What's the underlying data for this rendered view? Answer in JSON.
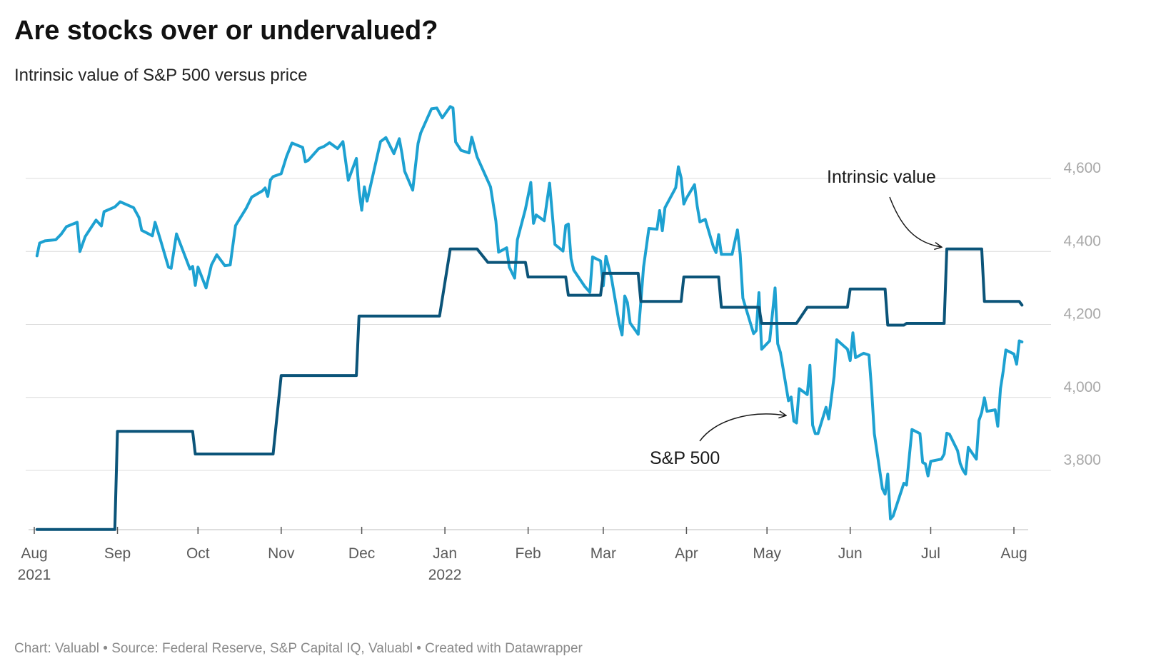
{
  "title": "Are stocks over or undervalued?",
  "subtitle": "Intrinsic value of S&P 500 versus price",
  "footer": {
    "credit": "Chart: Valuabl",
    "source": "Source: Federal Reserve, S&P Capital IQ, Valuabl",
    "tool": "Created with Datawrapper",
    "separator": " • "
  },
  "colors": {
    "sp500": "#1da1d1",
    "intrinsic": "#0b5479",
    "grid": "#dcdcdc",
    "ytick": "#a8a8a8",
    "xtick": "#5a5a5a"
  },
  "chart_data": {
    "type": "line",
    "title": "Are stocks over or undervalued?",
    "subtitle": "Intrinsic value of S&P 500 versus price",
    "xlabel": "",
    "ylabel": "",
    "xlim": [
      "2021-08-01",
      "2022-08-14"
    ],
    "ylim": [
      3630,
      4770
    ],
    "y_ticks": [
      3800,
      4000,
      4200,
      4400,
      4600
    ],
    "y_tick_labels": [
      "3,800",
      "4,000",
      "4,200",
      "4,400",
      "4,600"
    ],
    "x_ticks": [
      {
        "date": "2021-08-01",
        "label": "Aug",
        "sublabel": "2021"
      },
      {
        "date": "2021-09-01",
        "label": "Sep",
        "sublabel": ""
      },
      {
        "date": "2021-10-01",
        "label": "Oct",
        "sublabel": ""
      },
      {
        "date": "2021-11-01",
        "label": "Nov",
        "sublabel": ""
      },
      {
        "date": "2021-12-01",
        "label": "Dec",
        "sublabel": ""
      },
      {
        "date": "2022-01-01",
        "label": "Jan",
        "sublabel": "2022"
      },
      {
        "date": "2022-02-01",
        "label": "Feb",
        "sublabel": ""
      },
      {
        "date": "2022-03-01",
        "label": "Mar",
        "sublabel": ""
      },
      {
        "date": "2022-04-01",
        "label": "Apr",
        "sublabel": ""
      },
      {
        "date": "2022-05-01",
        "label": "May",
        "sublabel": ""
      },
      {
        "date": "2022-06-01",
        "label": "Jun",
        "sublabel": ""
      },
      {
        "date": "2022-07-01",
        "label": "Jul",
        "sublabel": ""
      },
      {
        "date": "2022-08-01",
        "label": "Aug",
        "sublabel": ""
      }
    ],
    "grid": true,
    "legend": "none (direct labels)",
    "annotations": [
      {
        "text": "Intrinsic value",
        "series": "Intrinsic value",
        "target": [
          "2022-07-06",
          4400
        ],
        "label_at": [
          "2022-07-01",
          4580
        ]
      },
      {
        "text": "S&P 500",
        "series": "S&P 500",
        "target": [
          "2022-05-09",
          3940
        ],
        "label_at": [
          "2022-04-15",
          3850
        ]
      }
    ],
    "series": [
      {
        "name": "S&P 500",
        "color": "#1da1d1",
        "points": [
          [
            "2021-08-02",
            4388
          ],
          [
            "2021-08-03",
            4423
          ],
          [
            "2021-08-05",
            4429
          ],
          [
            "2021-08-09",
            4432
          ],
          [
            "2021-08-11",
            4447
          ],
          [
            "2021-08-13",
            4468
          ],
          [
            "2021-08-17",
            4480
          ],
          [
            "2021-08-18",
            4400
          ],
          [
            "2021-08-20",
            4441
          ],
          [
            "2021-08-24",
            4486
          ],
          [
            "2021-08-26",
            4470
          ],
          [
            "2021-08-27",
            4509
          ],
          [
            "2021-08-31",
            4522
          ],
          [
            "2021-09-02",
            4536
          ],
          [
            "2021-09-07",
            4520
          ],
          [
            "2021-09-09",
            4493
          ],
          [
            "2021-09-10",
            4458
          ],
          [
            "2021-09-14",
            4443
          ],
          [
            "2021-09-15",
            4480
          ],
          [
            "2021-09-17",
            4432
          ],
          [
            "2021-09-20",
            4357
          ],
          [
            "2021-09-21",
            4354
          ],
          [
            "2021-09-23",
            4448
          ],
          [
            "2021-09-28",
            4352
          ],
          [
            "2021-09-29",
            4359
          ],
          [
            "2021-09-30",
            4307
          ],
          [
            "2021-10-01",
            4357
          ],
          [
            "2021-10-04",
            4300
          ],
          [
            "2021-10-06",
            4363
          ],
          [
            "2021-10-08",
            4391
          ],
          [
            "2021-10-11",
            4361
          ],
          [
            "2021-10-13",
            4363
          ],
          [
            "2021-10-15",
            4471
          ],
          [
            "2021-10-19",
            4519
          ],
          [
            "2021-10-21",
            4549
          ],
          [
            "2021-10-25",
            4566
          ],
          [
            "2021-10-26",
            4574
          ],
          [
            "2021-10-27",
            4551
          ],
          [
            "2021-10-28",
            4596
          ],
          [
            "2021-10-29",
            4605
          ],
          [
            "2021-11-01",
            4613
          ],
          [
            "2021-11-03",
            4660
          ],
          [
            "2021-11-05",
            4697
          ],
          [
            "2021-11-09",
            4685
          ],
          [
            "2021-11-10",
            4646
          ],
          [
            "2021-11-11",
            4649
          ],
          [
            "2021-11-15",
            4682
          ],
          [
            "2021-11-17",
            4688
          ],
          [
            "2021-11-19",
            4698
          ],
          [
            "2021-11-22",
            4682
          ],
          [
            "2021-11-24",
            4701
          ],
          [
            "2021-11-26",
            4595
          ],
          [
            "2021-11-29",
            4655
          ],
          [
            "2021-11-30",
            4567
          ],
          [
            "2021-12-01",
            4513
          ],
          [
            "2021-12-02",
            4577
          ],
          [
            "2021-12-03",
            4538
          ],
          [
            "2021-12-08",
            4701
          ],
          [
            "2021-12-10",
            4712
          ],
          [
            "2021-12-13",
            4668
          ],
          [
            "2021-12-15",
            4709
          ],
          [
            "2021-12-16",
            4668
          ],
          [
            "2021-12-17",
            4620
          ],
          [
            "2021-12-20",
            4568
          ],
          [
            "2021-12-22",
            4696
          ],
          [
            "2021-12-23",
            4725
          ],
          [
            "2021-12-27",
            4791
          ],
          [
            "2021-12-29",
            4793
          ],
          [
            "2021-12-31",
            4766
          ],
          [
            "2022-01-03",
            4797
          ],
          [
            "2022-01-04",
            4793
          ],
          [
            "2022-01-05",
            4700
          ],
          [
            "2022-01-07",
            4677
          ],
          [
            "2022-01-10",
            4670
          ],
          [
            "2022-01-11",
            4713
          ],
          [
            "2022-01-13",
            4659
          ],
          [
            "2022-01-18",
            4577
          ],
          [
            "2022-01-20",
            4483
          ],
          [
            "2022-01-21",
            4398
          ],
          [
            "2022-01-24",
            4410
          ],
          [
            "2022-01-25",
            4357
          ],
          [
            "2022-01-27",
            4327
          ],
          [
            "2022-01-28",
            4432
          ],
          [
            "2022-01-31",
            4516
          ],
          [
            "2022-02-02",
            4589
          ],
          [
            "2022-02-03",
            4477
          ],
          [
            "2022-02-04",
            4500
          ],
          [
            "2022-02-07",
            4484
          ],
          [
            "2022-02-09",
            4587
          ],
          [
            "2022-02-11",
            4419
          ],
          [
            "2022-02-14",
            4401
          ],
          [
            "2022-02-15",
            4471
          ],
          [
            "2022-02-16",
            4475
          ],
          [
            "2022-02-17",
            4380
          ],
          [
            "2022-02-18",
            4349
          ],
          [
            "2022-02-22",
            4305
          ],
          [
            "2022-02-24",
            4288
          ],
          [
            "2022-02-25",
            4385
          ],
          [
            "2022-02-28",
            4374
          ],
          [
            "2022-03-01",
            4306
          ],
          [
            "2022-03-02",
            4387
          ],
          [
            "2022-03-04",
            4329
          ],
          [
            "2022-03-07",
            4201
          ],
          [
            "2022-03-08",
            4171
          ],
          [
            "2022-03-09",
            4278
          ],
          [
            "2022-03-10",
            4260
          ],
          [
            "2022-03-11",
            4204
          ],
          [
            "2022-03-14",
            4173
          ],
          [
            "2022-03-15",
            4262
          ],
          [
            "2022-03-16",
            4357
          ],
          [
            "2022-03-18",
            4463
          ],
          [
            "2022-03-21",
            4461
          ],
          [
            "2022-03-22",
            4512
          ],
          [
            "2022-03-23",
            4457
          ],
          [
            "2022-03-24",
            4520
          ],
          [
            "2022-03-28",
            4575
          ],
          [
            "2022-03-29",
            4632
          ],
          [
            "2022-03-30",
            4602
          ],
          [
            "2022-03-31",
            4530
          ],
          [
            "2022-04-01",
            4546
          ],
          [
            "2022-04-04",
            4583
          ],
          [
            "2022-04-05",
            4525
          ],
          [
            "2022-04-06",
            4481
          ],
          [
            "2022-04-08",
            4488
          ],
          [
            "2022-04-11",
            4413
          ],
          [
            "2022-04-12",
            4397
          ],
          [
            "2022-04-13",
            4446
          ],
          [
            "2022-04-14",
            4392
          ],
          [
            "2022-04-18",
            4392
          ],
          [
            "2022-04-20",
            4459
          ],
          [
            "2022-04-21",
            4393
          ],
          [
            "2022-04-22",
            4272
          ],
          [
            "2022-04-26",
            4175
          ],
          [
            "2022-04-27",
            4183
          ],
          [
            "2022-04-28",
            4287
          ],
          [
            "2022-04-29",
            4132
          ],
          [
            "2022-05-02",
            4155
          ],
          [
            "2022-05-04",
            4300
          ],
          [
            "2022-05-05",
            4147
          ],
          [
            "2022-05-06",
            4123
          ],
          [
            "2022-05-09",
            3991
          ],
          [
            "2022-05-10",
            4001
          ],
          [
            "2022-05-11",
            3935
          ],
          [
            "2022-05-12",
            3930
          ],
          [
            "2022-05-13",
            4024
          ],
          [
            "2022-05-16",
            4008
          ],
          [
            "2022-05-17",
            4088
          ],
          [
            "2022-05-18",
            3924
          ],
          [
            "2022-05-19",
            3901
          ],
          [
            "2022-05-20",
            3901
          ],
          [
            "2022-05-23",
            3973
          ],
          [
            "2022-05-24",
            3941
          ],
          [
            "2022-05-26",
            4058
          ],
          [
            "2022-05-27",
            4158
          ],
          [
            "2022-05-31",
            4132
          ],
          [
            "2022-06-01",
            4101
          ],
          [
            "2022-06-02",
            4177
          ],
          [
            "2022-06-03",
            4109
          ],
          [
            "2022-06-06",
            4121
          ],
          [
            "2022-06-08",
            4116
          ],
          [
            "2022-06-09",
            4018
          ],
          [
            "2022-06-10",
            3901
          ],
          [
            "2022-06-13",
            3750
          ],
          [
            "2022-06-14",
            3735
          ],
          [
            "2022-06-15",
            3790
          ],
          [
            "2022-06-16",
            3667
          ],
          [
            "2022-06-17",
            3675
          ],
          [
            "2022-06-21",
            3765
          ],
          [
            "2022-06-22",
            3760
          ],
          [
            "2022-06-24",
            3912
          ],
          [
            "2022-06-27",
            3901
          ],
          [
            "2022-06-28",
            3822
          ],
          [
            "2022-06-29",
            3818
          ],
          [
            "2022-06-30",
            3785
          ],
          [
            "2022-07-01",
            3825
          ],
          [
            "2022-07-05",
            3831
          ],
          [
            "2022-07-06",
            3845
          ],
          [
            "2022-07-07",
            3902
          ],
          [
            "2022-07-08",
            3899
          ],
          [
            "2022-07-11",
            3854
          ],
          [
            "2022-07-12",
            3819
          ],
          [
            "2022-07-13",
            3801
          ],
          [
            "2022-07-14",
            3790
          ],
          [
            "2022-07-15",
            3863
          ],
          [
            "2022-07-18",
            3831
          ],
          [
            "2022-07-19",
            3937
          ],
          [
            "2022-07-20",
            3959
          ],
          [
            "2022-07-21",
            3999
          ],
          [
            "2022-07-22",
            3962
          ],
          [
            "2022-07-25",
            3966
          ],
          [
            "2022-07-26",
            3921
          ],
          [
            "2022-07-27",
            4024
          ],
          [
            "2022-07-28",
            4072
          ],
          [
            "2022-07-29",
            4130
          ],
          [
            "2022-08-01",
            4119
          ],
          [
            "2022-08-02",
            4091
          ],
          [
            "2022-08-03",
            4155
          ],
          [
            "2022-08-04",
            4152
          ]
        ]
      },
      {
        "name": "Intrinsic value",
        "color": "#0b5479",
        "points": [
          [
            "2021-08-02",
            3638
          ],
          [
            "2021-08-31",
            3638
          ],
          [
            "2021-09-01",
            3907
          ],
          [
            "2021-09-29",
            3907
          ],
          [
            "2021-09-30",
            3845
          ],
          [
            "2021-10-29",
            3845
          ],
          [
            "2021-11-01",
            4060
          ],
          [
            "2021-11-29",
            4060
          ],
          [
            "2021-11-30",
            4223
          ],
          [
            "2021-12-30",
            4223
          ],
          [
            "2022-01-03",
            4407
          ],
          [
            "2022-01-13",
            4407
          ],
          [
            "2022-01-17",
            4370
          ],
          [
            "2022-01-31",
            4370
          ],
          [
            "2022-02-01",
            4330
          ],
          [
            "2022-02-15",
            4330
          ],
          [
            "2022-02-16",
            4280
          ],
          [
            "2022-02-28",
            4280
          ],
          [
            "2022-03-01",
            4340
          ],
          [
            "2022-03-14",
            4340
          ],
          [
            "2022-03-15",
            4263
          ],
          [
            "2022-03-30",
            4263
          ],
          [
            "2022-03-31",
            4330
          ],
          [
            "2022-04-13",
            4330
          ],
          [
            "2022-04-14",
            4247
          ],
          [
            "2022-04-28",
            4247
          ],
          [
            "2022-04-29",
            4203
          ],
          [
            "2022-05-12",
            4203
          ],
          [
            "2022-05-16",
            4247
          ],
          [
            "2022-05-31",
            4247
          ],
          [
            "2022-06-01",
            4297
          ],
          [
            "2022-06-14",
            4297
          ],
          [
            "2022-06-15",
            4198
          ],
          [
            "2022-06-21",
            4198
          ],
          [
            "2022-06-22",
            4203
          ],
          [
            "2022-07-06",
            4203
          ],
          [
            "2022-07-07",
            4407
          ],
          [
            "2022-07-20",
            4407
          ],
          [
            "2022-07-21",
            4263
          ],
          [
            "2022-08-03",
            4263
          ],
          [
            "2022-08-04",
            4253
          ]
        ]
      }
    ]
  }
}
